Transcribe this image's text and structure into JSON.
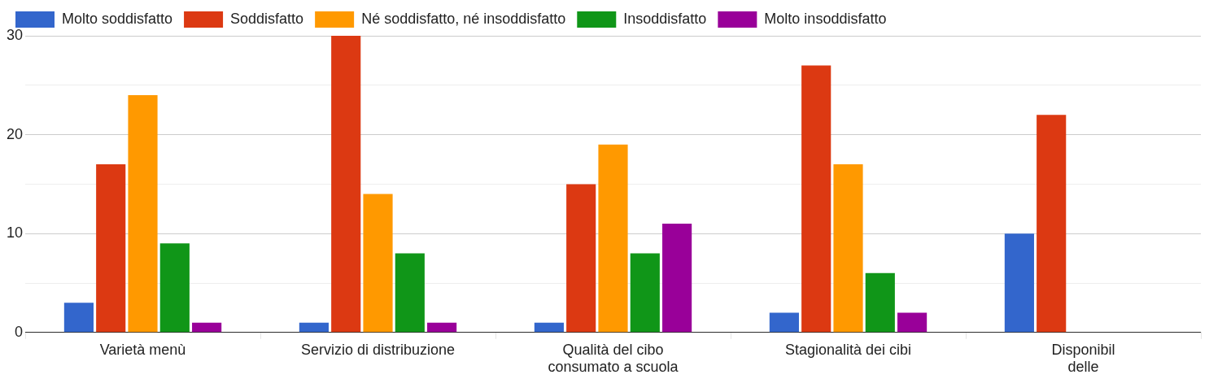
{
  "chart_data": {
    "type": "bar",
    "categories": [
      "Varietà menù",
      "Servizio di distribuzione",
      "Qualità del cibo\nconsumato a scuola",
      "Stagionalità dei cibi",
      "Disponibil\ndelle"
    ],
    "series": [
      {
        "name": "Molto soddisfatto",
        "color": "#3366cc",
        "values": [
          3,
          1,
          1,
          2,
          10
        ]
      },
      {
        "name": "Soddisfatto",
        "color": "#dc3912",
        "values": [
          17,
          30,
          15,
          27,
          22
        ]
      },
      {
        "name": "Né soddisfatto, né insoddisfatto",
        "color": "#ff9900",
        "values": [
          24,
          14,
          19,
          17,
          null
        ]
      },
      {
        "name": "Insoddisfatto",
        "color": "#109618",
        "values": [
          9,
          8,
          8,
          6,
          null
        ]
      },
      {
        "name": "Molto insoddisfatto",
        "color": "#990099",
        "values": [
          1,
          1,
          11,
          2,
          null
        ]
      }
    ],
    "ylim": [
      0,
      30
    ],
    "yticks": [
      0,
      {
        "value": 5,
        "label": null
      },
      10,
      {
        "value": 15,
        "label": null
      },
      20,
      {
        "value": 25,
        "label": null
      },
      30
    ],
    "grid": true,
    "legend": "top left"
  }
}
